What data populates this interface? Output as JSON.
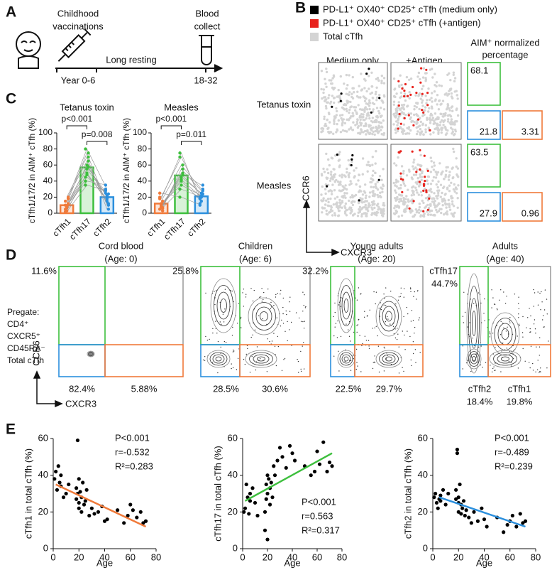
{
  "panel_labels": [
    "A",
    "B",
    "C",
    "D",
    "E"
  ],
  "panel_a": {
    "vaccination_label": [
      "Childhood",
      "vaccinations"
    ],
    "collect_label": [
      "Blood",
      "collect"
    ],
    "resting_label": "Long resting",
    "year_start": "Year 0-6",
    "year_end": "18-32"
  },
  "panel_b": {
    "legend": [
      {
        "label": "PD-L1⁺ OX40⁺ CD25⁺ cTfh (medium only)",
        "color": "#000000"
      },
      {
        "label": "PD-L1⁺ OX40⁺ CD25⁺ cTfh (+antigen)",
        "color": "#e8221c"
      },
      {
        "label": "Total cTfh",
        "color": "#d4d4d4"
      }
    ],
    "columns": [
      "Medium only",
      "+Antigen"
    ],
    "summary_header": [
      "AIM⁺ normalized",
      "percentage"
    ],
    "rows": [
      {
        "label": "Tetanus toxin",
        "cTfh17": 68.1,
        "cTfh2": 21.8,
        "cTfh1": 3.31
      },
      {
        "label": "Measles",
        "cTfh17": 63.5,
        "cTfh2": 27.9,
        "cTfh1": 0.96
      }
    ],
    "y_axis": "CCR6",
    "x_axis": "CXCR3"
  },
  "panel_d": {
    "plots": [
      {
        "title": [
          "Cord blood",
          "(Age: 0)"
        ],
        "top_left": "11.6%",
        "bottom_left": "82.4%",
        "bottom_right": "5.88%"
      },
      {
        "title": [
          "Children",
          "(Age: 6)"
        ],
        "top_left": "25.8%",
        "bottom_left": "28.5%",
        "bottom_right": "30.6%"
      },
      {
        "title": [
          "Young adults",
          "(Age: 20)"
        ],
        "top_left": "32.2%",
        "bottom_left": "22.5%",
        "bottom_right": "29.7%"
      },
      {
        "title": [
          "Adults",
          "(Age: 40)"
        ],
        "top_left": "44.7%",
        "bottom_left": "18.4%",
        "bottom_right": "19.8%",
        "gate_names": [
          "cTfh17",
          "cTfh2",
          "cTfh1"
        ]
      }
    ],
    "pregate": [
      "Pregate:",
      "CD4⁺",
      "CXCR5⁺",
      "CD45RA⁻",
      "Total cTfh"
    ],
    "y_axis": "CCR6",
    "x_axis": "CXCR3"
  },
  "chart_data": [
    {
      "type": "bar",
      "title": "Tetanus toxin",
      "y_label": "cTfh1/17/2 in AIM⁺ cTfh (%)",
      "categories": [
        "cTfh1",
        "cTfh17",
        "cTfh2"
      ],
      "colors": [
        "#f07a3a",
        "#3dbf3d",
        "#2b8fdd"
      ],
      "values": [
        10,
        57,
        20
      ],
      "points": [
        [
          5,
          8,
          12,
          15,
          3,
          20,
          10,
          7,
          18,
          2,
          9,
          11
        ],
        [
          45,
          60,
          75,
          80,
          50,
          70,
          40,
          55,
          65,
          35,
          48,
          58
        ],
        [
          25,
          20,
          10,
          30,
          15,
          5,
          35,
          22,
          12,
          28,
          18,
          24
        ]
      ],
      "ylim": [
        0,
        100
      ],
      "yticks": [
        0,
        20,
        40,
        60,
        80,
        100
      ],
      "annotations": [
        "p<0.001",
        "p=0.008"
      ]
    },
    {
      "type": "bar",
      "title": "Measles",
      "y_label": "cTfh1/17/2 in AIM⁺ cTfh (%)",
      "categories": [
        "cTfh1",
        "cTfh17",
        "cTfh2"
      ],
      "colors": [
        "#f07a3a",
        "#3dbf3d",
        "#2b8fdd"
      ],
      "values": [
        12,
        47,
        21
      ],
      "points": [
        [
          5,
          10,
          15,
          20,
          8,
          3,
          25,
          12,
          7,
          18,
          10,
          6
        ],
        [
          30,
          45,
          60,
          70,
          40,
          55,
          20,
          35,
          50,
          75,
          42,
          48
        ],
        [
          20,
          25,
          30,
          18,
          15,
          28,
          10,
          22,
          35,
          12,
          20,
          24
        ]
      ],
      "ylim": [
        0,
        100
      ],
      "yticks": [
        0,
        20,
        40,
        60,
        80,
        100
      ],
      "annotations": [
        "p<0.001",
        "p=0.011"
      ]
    },
    {
      "type": "scatter",
      "x_label": "Age",
      "y_label": "cTfh1 in total cTfh (%)",
      "color": "#000000",
      "x": [
        1,
        2,
        3,
        4,
        5,
        6,
        6,
        8,
        10,
        12,
        18,
        18,
        19,
        19,
        20,
        20,
        20,
        21,
        22,
        22,
        23,
        24,
        25,
        26,
        28,
        30,
        32,
        35,
        38,
        40,
        42,
        50,
        55,
        58,
        60,
        62,
        65,
        68,
        70,
        72
      ],
      "y": [
        38,
        42,
        32,
        45,
        36,
        34,
        40,
        28,
        30,
        35,
        33,
        27,
        30,
        59,
        22,
        38,
        25,
        31,
        20,
        28,
        36,
        24,
        26,
        32,
        18,
        22,
        19,
        20,
        23,
        15,
        16,
        21,
        14,
        18,
        24,
        21,
        17,
        20,
        14,
        15
      ],
      "fit": {
        "x": [
          2,
          72
        ],
        "y": [
          35,
          12
        ],
        "color": "#f07a3a"
      },
      "stats": [
        "P<0.001",
        "r=-0.532",
        "R²=0.283"
      ],
      "xlim": [
        0,
        80
      ],
      "ylim": [
        0,
        60
      ],
      "xticks": [
        0,
        20,
        40,
        60,
        80
      ],
      "yticks": [
        0,
        20,
        40,
        60
      ]
    },
    {
      "type": "scatter",
      "x_label": "Age",
      "y_label": "cTfh17 in total cTfh (%)",
      "color": "#000000",
      "x": [
        1,
        2,
        3,
        4,
        5,
        6,
        6,
        8,
        10,
        12,
        18,
        18,
        19,
        19,
        20,
        20,
        20,
        21,
        22,
        22,
        23,
        24,
        25,
        26,
        28,
        30,
        32,
        35,
        38,
        40,
        42,
        50,
        55,
        58,
        60,
        62,
        65,
        68,
        70,
        72
      ],
      "y": [
        20,
        22,
        35,
        28,
        19,
        26,
        30,
        33,
        25,
        18,
        10,
        20,
        27,
        35,
        5,
        40,
        30,
        38,
        33,
        24,
        36,
        28,
        45,
        40,
        48,
        55,
        50,
        44,
        56,
        52,
        48,
        45,
        40,
        42,
        53,
        46,
        58,
        42,
        47,
        45
      ],
      "fit": {
        "x": [
          2,
          72
        ],
        "y": [
          26,
          52
        ],
        "color": "#3dbf3d"
      },
      "stats": [
        "P<0.001",
        "r=0.563",
        "R²=0.317"
      ],
      "xlim": [
        0,
        80
      ],
      "ylim": [
        0,
        60
      ],
      "xticks": [
        0,
        20,
        40,
        60,
        80
      ],
      "yticks": [
        0,
        20,
        40,
        60
      ]
    },
    {
      "type": "scatter",
      "x_label": "Age",
      "y_label": "cTfh2 in total cTfh (%)",
      "color": "#000000",
      "x": [
        1,
        2,
        3,
        4,
        5,
        6,
        6,
        8,
        10,
        12,
        18,
        18,
        19,
        19,
        20,
        20,
        20,
        21,
        22,
        22,
        23,
        24,
        25,
        26,
        28,
        30,
        32,
        35,
        38,
        40,
        42,
        50,
        55,
        58,
        60,
        62,
        65,
        68,
        70,
        72
      ],
      "y": [
        28,
        30,
        25,
        22,
        27,
        29,
        26,
        32,
        24,
        30,
        27,
        32,
        52,
        54,
        25,
        20,
        28,
        35,
        24,
        19,
        22,
        26,
        18,
        21,
        17,
        14,
        20,
        15,
        22,
        16,
        12,
        17,
        9,
        13,
        15,
        18,
        12,
        19,
        14,
        15
      ],
      "fit": {
        "x": [
          5,
          72
        ],
        "y": [
          28,
          12
        ],
        "color": "#2b8fdd"
      },
      "stats": [
        "P<0.001",
        "r=-0.489",
        "R²=0.239"
      ],
      "xlim": [
        0,
        80
      ],
      "ylim": [
        0,
        60
      ],
      "xticks": [
        0,
        20,
        40,
        60,
        80
      ],
      "yticks": [
        0,
        20,
        40,
        60
      ]
    }
  ]
}
